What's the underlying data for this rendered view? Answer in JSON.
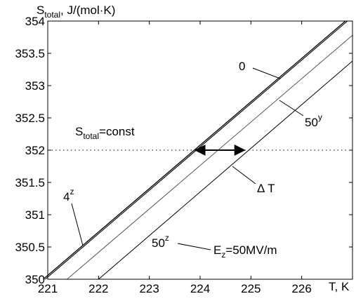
{
  "chart_data": {
    "type": "line",
    "xlim": [
      221,
      227
    ],
    "ylim": [
      350,
      354
    ],
    "xticks": [
      221,
      222,
      223,
      224,
      225,
      226
    ],
    "yticks": [
      350,
      350.5,
      351,
      351.5,
      352,
      352.5,
      353,
      353.5,
      354
    ],
    "xtick_labels": [
      "221",
      "222",
      "223",
      "224",
      "225",
      "226"
    ],
    "ytick_labels": [
      "350",
      "350.5",
      "351",
      "351.5",
      "352",
      "352.5",
      "353",
      "353.5",
      "354"
    ],
    "xlabel": "T, K",
    "ylabel": {
      "main": "S",
      "sub": "total",
      "rest": ", J/(mol·K)"
    },
    "grid": false,
    "series": [
      {
        "x": [
          220.91,
          226.86
        ],
        "y": [
          350,
          354
        ],
        "color": "#000000",
        "stroke": 1.3
      },
      {
        "x": [
          220.95,
          226.9
        ],
        "y": [
          350,
          354
        ],
        "color": "#000000",
        "stroke": 1.1
      },
      {
        "x": [
          221.38,
          227
        ],
        "y": [
          350,
          353.78
        ],
        "color": "#555555",
        "stroke": 1.0
      },
      {
        "x": [
          222.0,
          227
        ],
        "y": [
          350,
          353.38
        ],
        "color": "#000000",
        "stroke": 1.0
      }
    ],
    "reference_line": {
      "y": 352,
      "style": "dotted",
      "label": {
        "main": "S",
        "sub": "total",
        "rest": "=const"
      }
    },
    "delta_arrow": {
      "y": 352,
      "x1": 223.88,
      "x2": 224.9,
      "label": "Δ T"
    },
    "annotations": [
      {
        "text": "0",
        "sup": ""
      },
      {
        "text": "50",
        "sup": "y"
      },
      {
        "text": "4",
        "sup": "z"
      },
      {
        "text": "50",
        "sup": "z"
      },
      {
        "text": "E",
        "sub": "z",
        "rest": "=50MV/m"
      }
    ]
  }
}
